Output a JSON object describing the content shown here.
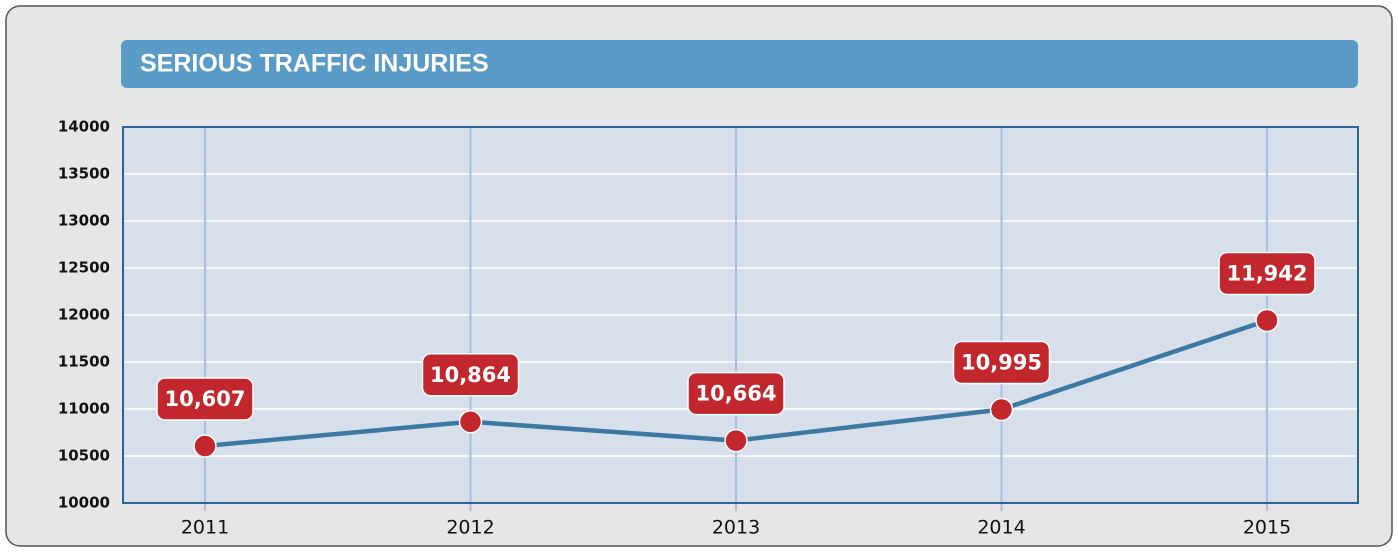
{
  "chart_data": {
    "type": "line",
    "title": "SERIOUS TRAFFIC INJURIES",
    "categories": [
      "2011",
      "2012",
      "2013",
      "2014",
      "2015"
    ],
    "series": [
      {
        "name": "Serious traffic injuries",
        "color": "#3c78a2",
        "values": [
          10607,
          10864,
          10664,
          10995,
          11942
        ],
        "value_labels": [
          "10,607",
          "10,864",
          "10,664",
          "10,995",
          "11,942"
        ]
      }
    ],
    "marker_color": "#c1272d",
    "ylim": [
      10000,
      14000
    ],
    "yticks": [
      10000,
      10500,
      11000,
      11500,
      12000,
      12500,
      13000,
      13500,
      14000
    ],
    "grid": true
  }
}
